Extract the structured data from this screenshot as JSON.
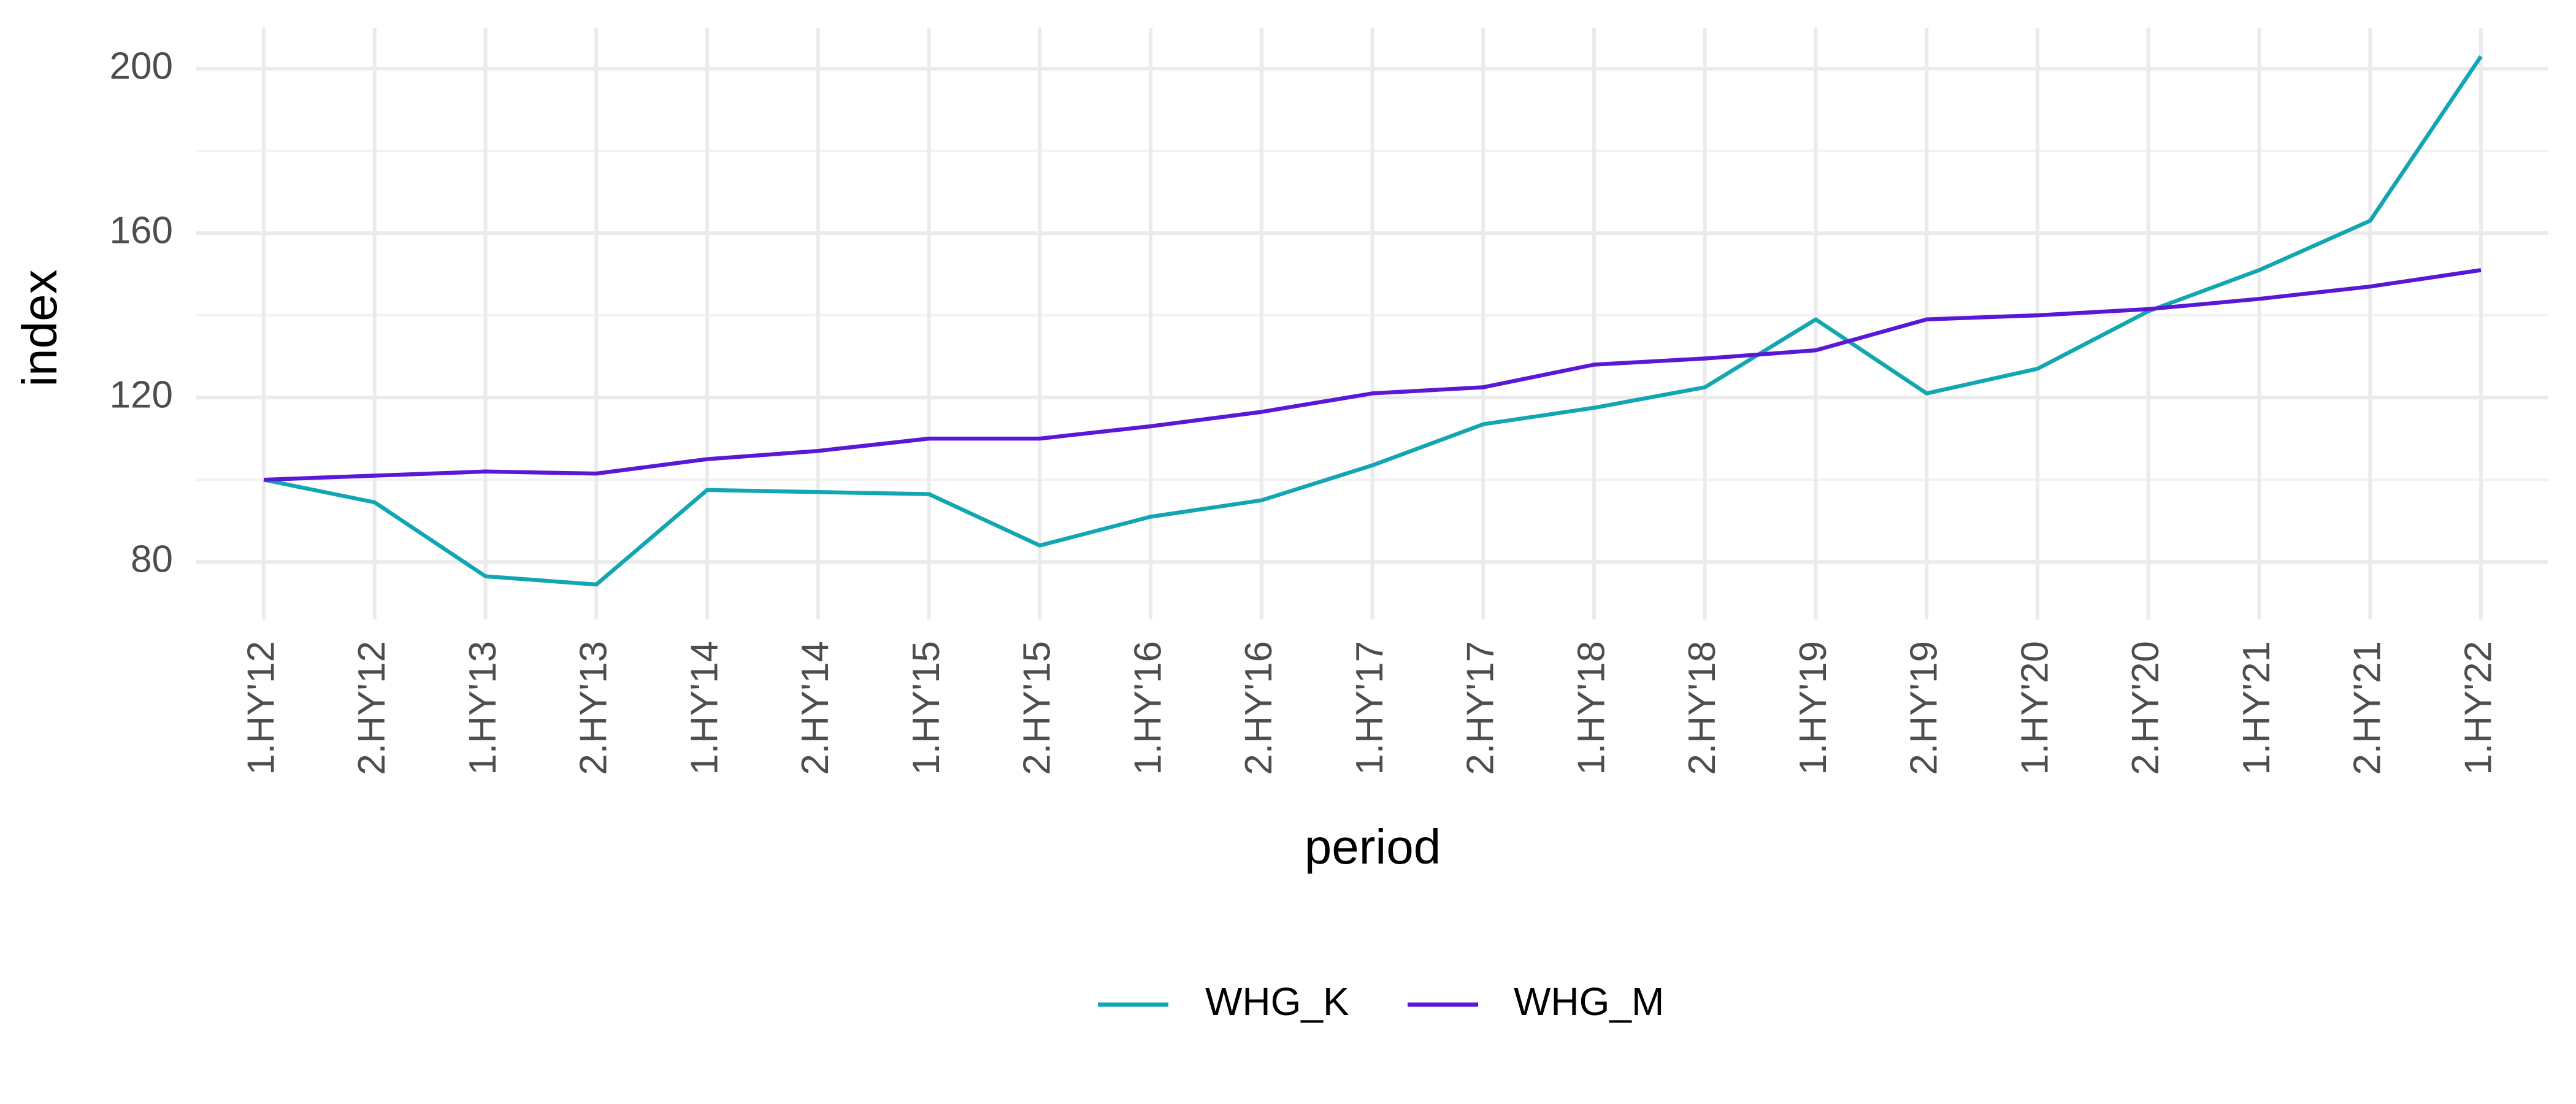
{
  "chart_data": {
    "type": "line",
    "x": [
      "1.HY'12",
      "2.HY'12",
      "1.HY'13",
      "2.HY'13",
      "1.HY'14",
      "2.HY'14",
      "1.HY'15",
      "2.HY'15",
      "1.HY'16",
      "2.HY'16",
      "1.HY'17",
      "2.HY'17",
      "1.HY'18",
      "2.HY'18",
      "1.HY'19",
      "2.HY'19",
      "1.HY'20",
      "2.HY'20",
      "1.HY'21",
      "2.HY'21",
      "1.HY'22"
    ],
    "series": [
      {
        "name": "WHG_K",
        "color": "#11a6b2",
        "values": [
          100,
          94.5,
          76.5,
          74.5,
          97.5,
          97,
          96.5,
          84,
          91,
          95,
          103.5,
          113.5,
          117.5,
          122.5,
          139,
          121,
          127,
          141,
          151,
          163,
          203
        ]
      },
      {
        "name": "WHG_M",
        "color": "#5a17d6",
        "values": [
          100,
          101,
          102,
          101.5,
          105,
          107,
          110,
          110,
          113,
          116.5,
          121,
          122.5,
          128,
          129.5,
          131.5,
          139,
          140,
          141.5,
          144,
          147,
          151
        ]
      }
    ],
    "title": "",
    "xlabel": "period",
    "ylabel": "index",
    "ylim": [
      66,
      210
    ],
    "yticks": [
      80,
      120,
      160,
      200
    ],
    "ytick_labels": [
      "80",
      "120",
      "160",
      "200"
    ],
    "grid": true,
    "legend_position": "bottom"
  }
}
